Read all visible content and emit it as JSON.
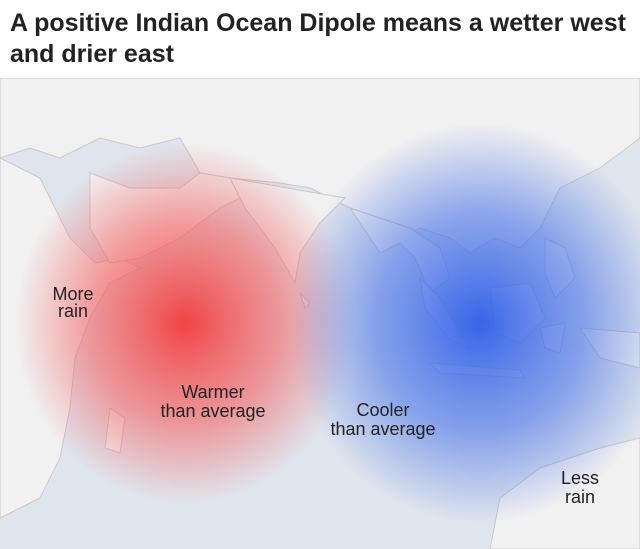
{
  "title": "A positive Indian Ocean Dipole means a wetter west and drier east",
  "labels": [
    {
      "lines": [
        "More",
        "rain"
      ]
    },
    {
      "lines": [
        "Warmer",
        "than average"
      ]
    },
    {
      "lines": [
        "Cooler",
        "than average"
      ]
    },
    {
      "lines": [
        "Less",
        "rain"
      ]
    }
  ]
}
